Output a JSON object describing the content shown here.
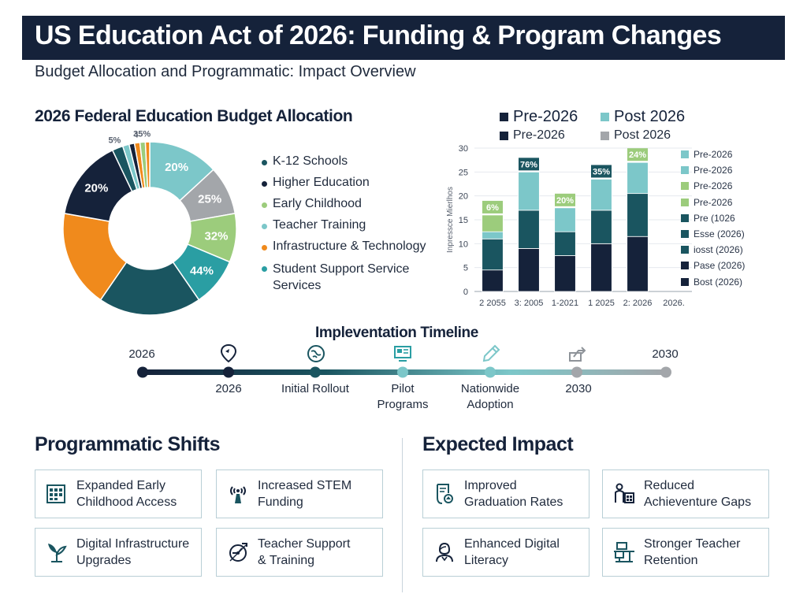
{
  "header": {
    "title": "US Education Act of 2026: Funding & Program Changes",
    "subtitle": "Budget Allocation and Programmatic: Impact Overview"
  },
  "colors": {
    "navy": "#15223a",
    "dark_teal": "#1a5560",
    "teal": "#2a9ea3",
    "light_teal": "#7cc7c9",
    "orange": "#f08a1c",
    "green": "#9ccc7c",
    "gray": "#a3a6aa"
  },
  "donut": {
    "title": "2026 Federal Education Budget Allocation",
    "legend": [
      {
        "label": "K-12 Schools",
        "color": "#1a5560"
      },
      {
        "label": "Higher Education",
        "color": "#15223a"
      },
      {
        "label": "Early Childhood",
        "color": "#9ccc7c"
      },
      {
        "label": "Teacher Training",
        "color": "#7cc7c9"
      },
      {
        "label": "Infrastructure & Technology",
        "color": "#f08a1c"
      },
      {
        "label": "Student Support Service Services",
        "color": "#2a9ea3"
      }
    ]
  },
  "chart_data": [
    {
      "type": "pie",
      "title": "2026 Federal Education Budget Allocation",
      "slices": [
        {
          "label": "20%",
          "value": 13,
          "color": "#7cc7c9"
        },
        {
          "label": "25%",
          "value": 9,
          "color": "#a3a6aa"
        },
        {
          "label": "32%",
          "value": 9,
          "color": "#9ccc7c"
        },
        {
          "label": "44%",
          "value": 9,
          "color": "#2a9ea3"
        },
        {
          "label": "",
          "value": 19,
          "color": "#1a5560"
        },
        {
          "label": "",
          "value": 18,
          "color": "#f08a1c"
        },
        {
          "label": "20%",
          "value": 15,
          "color": "#15223a"
        },
        {
          "label": "5%",
          "value": 2,
          "color": "#1a5560"
        },
        {
          "label": "",
          "value": 1.2,
          "color": "#7cc7c9"
        },
        {
          "label": "",
          "value": 1,
          "color": "#15223a"
        },
        {
          "label": "4",
          "value": 1,
          "color": "#f08a1c"
        },
        {
          "label": "35%",
          "value": 1,
          "color": "#9ccc7c"
        },
        {
          "label": "",
          "value": 0.8,
          "color": "#f08a1c"
        }
      ]
    },
    {
      "type": "bar",
      "stacked": true,
      "ylabel": "Inpressce Mierlhos",
      "ylim": [
        0,
        30
      ],
      "yticks": [
        0,
        5,
        10,
        15,
        20,
        25,
        30
      ],
      "categories": [
        "2 2055",
        "3: 2005",
        "1-2021",
        "1 2025",
        "2: 2026",
        "2026."
      ],
      "series": [
        {
          "name": "Pre-2026",
          "color": "#15223a",
          "values": [
            4.5,
            9,
            7.5,
            10,
            11.5,
            0
          ]
        },
        {
          "name": "Post 2026",
          "color": "#1a5560",
          "values": [
            6.5,
            8,
            5,
            7,
            9,
            0
          ]
        },
        {
          "name": "Pre-2026",
          "color": "#7cc7c9",
          "values": [
            1.5,
            8,
            5,
            6.5,
            6.5,
            0
          ]
        },
        {
          "name": "Post 2026",
          "color": "#9ccc7c",
          "values": [
            3.5,
            0,
            0,
            0,
            0,
            0
          ]
        }
      ],
      "top_labels": [
        "6%",
        "76%",
        "20%",
        "35%",
        "24%",
        ""
      ],
      "top_label_colors": [
        "#9ccc7c",
        "#1a5560",
        "#9ccc7c",
        "#1a5560",
        "#9ccc7c",
        ""
      ],
      "legend_top": [
        [
          {
            "label": "Pre-2026",
            "color": "#15223a"
          },
          {
            "label": "Post 2026",
            "color": "#7cc7c9"
          }
        ],
        [
          {
            "label": "Pre-2026",
            "color": "#15223a"
          },
          {
            "label": "Post 2026",
            "color": "#a3a6aa"
          }
        ]
      ],
      "legend_side": [
        {
          "label": "Pre-2026",
          "color": "#7cc7c9"
        },
        {
          "label": "Pre-2026",
          "color": "#7cc7c9"
        },
        {
          "label": "Pre-2026",
          "color": "#9ccc7c"
        },
        {
          "label": "Pre-2026",
          "color": "#9ccc7c"
        },
        {
          "label": "Pre (1026",
          "color": "#1a5560"
        },
        {
          "label": "Esse (2026)",
          "color": "#1a5560"
        },
        {
          "label": "iosst (2026)",
          "color": "#1a5560"
        },
        {
          "label": "Pase (2026)",
          "color": "#15223a"
        },
        {
          "label": "Bost (2026)",
          "color": "#15223a"
        }
      ]
    }
  ],
  "timeline": {
    "title": "Impleventation Timeline",
    "start_label": "2026",
    "end_label": "2030",
    "milestones": [
      {
        "label": "2026",
        "icon": "location-pin-icon"
      },
      {
        "label": "Initial Rollout",
        "icon": "globe-icon"
      },
      {
        "label": "Pilot Programs",
        "icon": "screen-icon"
      },
      {
        "label": "Nationwide Adoption",
        "icon": "pencil-icon"
      },
      {
        "label": "2030",
        "icon": "arrow-chart-icon"
      }
    ]
  },
  "shifts": {
    "title": "Programmatic Shifts",
    "cards": [
      {
        "text": "Expanded Early Childhood Access",
        "icon": "calendar-grid-icon"
      },
      {
        "text": "Increased STEM Funding",
        "icon": "antenna-icon"
      },
      {
        "text": "Digital Infrastructure Upgrades",
        "icon": "plant-icon"
      },
      {
        "text": "Teacher Support & Training",
        "icon": "gauge-icon"
      }
    ]
  },
  "impact": {
    "title": "Expected Impact",
    "cards": [
      {
        "text": "Improved Graduation Rates",
        "icon": "diploma-icon"
      },
      {
        "text": "Reduced Achieventure Gaps",
        "icon": "people-chart-icon"
      },
      {
        "text": "Enhanced Digital Literacy",
        "icon": "person-icon"
      },
      {
        "text": "Stronger Teacher Retention",
        "icon": "desk-icon"
      }
    ]
  }
}
